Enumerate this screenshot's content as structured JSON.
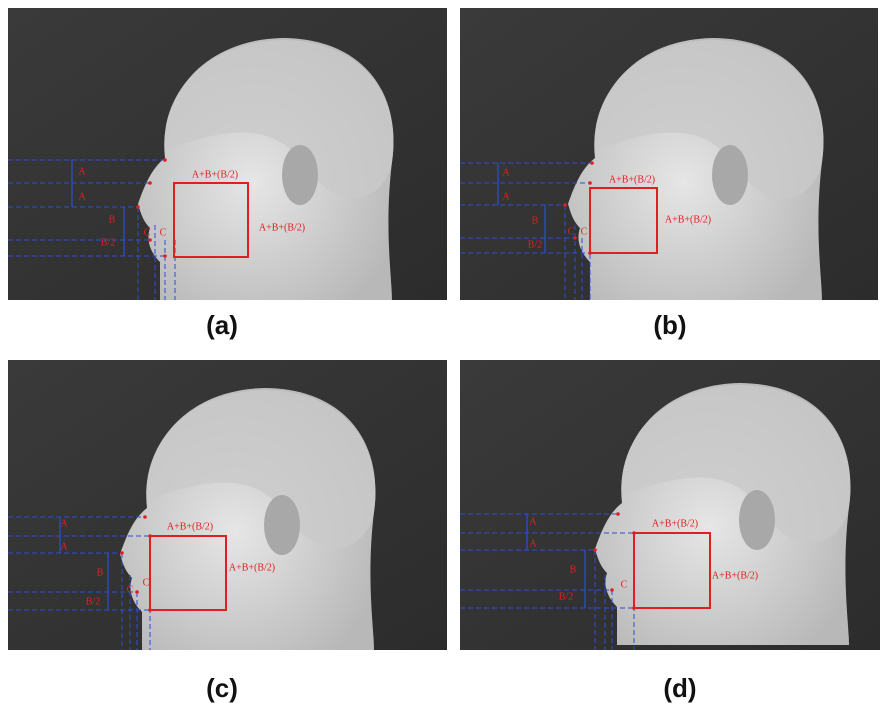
{
  "panels": [
    {
      "caption": "(a)",
      "labels": [
        "A",
        "A",
        "B",
        "B/2",
        "C",
        "C",
        "A+B+(B/2)",
        "A+B+(B/2)"
      ]
    },
    {
      "caption": "(b)",
      "labels": [
        "A",
        "A",
        "B",
        "B/2",
        "C",
        "C",
        "A+B+(B/2)",
        "A+B+(B/2)"
      ]
    },
    {
      "caption": "(c)",
      "labels": [
        "A",
        "A",
        "B",
        "B/2",
        "C",
        "C",
        "A+B+(B/2)",
        "A+B+(B/2)"
      ]
    },
    {
      "caption": "(d)",
      "labels": [
        "A",
        "A",
        "B",
        "B/2",
        "C",
        "A+B+(B/2)",
        "A+B+(B/2)"
      ]
    }
  ]
}
